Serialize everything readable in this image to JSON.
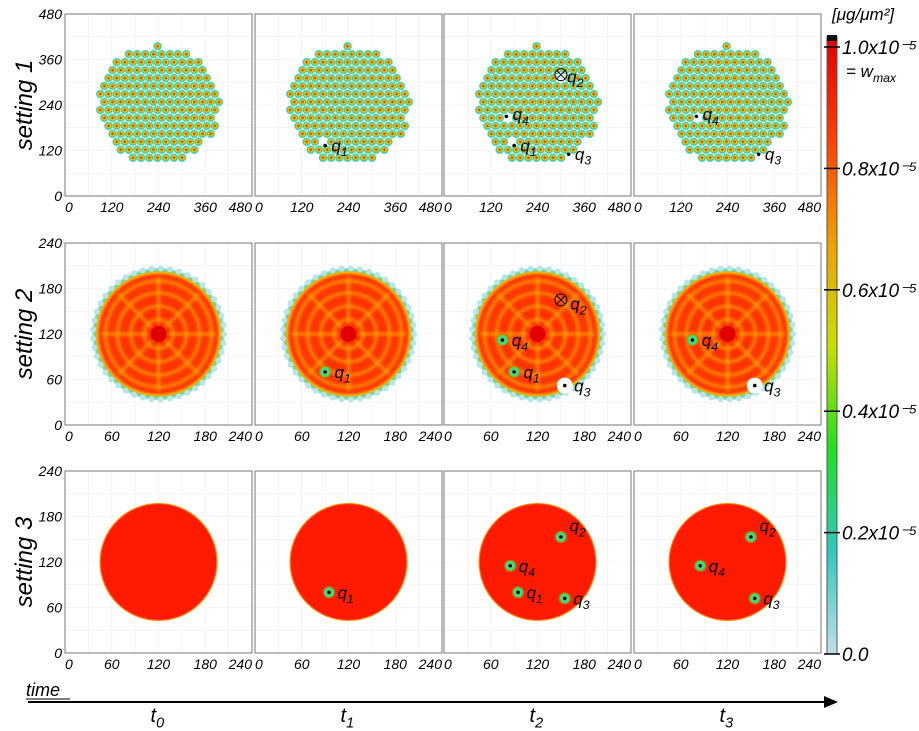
{
  "colorbar": {
    "unit": "[μg/μm²]",
    "max_label": "1.0x10⁻⁵",
    "wmax_label": "= w",
    "wmax_sub": "max",
    "ticks": [
      {
        "value": 1.0,
        "label": "1.0x10⁻⁵"
      },
      {
        "value": 0.8,
        "label": "0.8x10⁻⁵"
      },
      {
        "value": 0.6,
        "label": "0.6x10⁻⁵"
      },
      {
        "value": 0.4,
        "label": "0.4x10⁻⁵"
      },
      {
        "value": 0.2,
        "label": "0.2x10⁻⁵"
      },
      {
        "value": 0.0,
        "label": "0.0"
      }
    ],
    "colors": [
      "#c0e0e8",
      "#30c8c0",
      "#20e020",
      "#c8e000",
      "#f0a000",
      "#ff4000",
      "#e00000"
    ]
  },
  "time_axis": {
    "label": "time",
    "times": [
      {
        "base": "t",
        "sub": "0"
      },
      {
        "base": "t",
        "sub": "1"
      },
      {
        "base": "t",
        "sub": "2"
      },
      {
        "base": "t",
        "sub": "3"
      }
    ]
  },
  "settings": [
    {
      "label": "setting 1"
    },
    {
      "label": "setting 2"
    },
    {
      "label": "setting 3"
    }
  ],
  "chart_data": [
    {
      "type": "heatmap",
      "setting": "setting 1",
      "xlim": [
        0,
        480
      ],
      "ylim": [
        0,
        480
      ],
      "xticks": [
        "0",
        "120",
        "240",
        "360",
        "480"
      ],
      "yticks": [
        "0",
        "120",
        "240",
        "360",
        "480"
      ],
      "field": "pillars",
      "domain": {
        "cx": 240,
        "cy": 240,
        "r": 160
      },
      "points_by_time": [
        [],
        [
          {
            "name": "q",
            "sub": "1",
            "x": 180,
            "y": 133,
            "lx": 196,
            "ly": 118
          }
        ],
        [
          {
            "name": "q",
            "sub": "1",
            "x": 180,
            "y": 133,
            "lx": 196,
            "ly": 118
          },
          {
            "name": "q",
            "sub": "2",
            "x": 300,
            "y": 320,
            "lx": 316,
            "ly": 300,
            "marker": "otimes"
          },
          {
            "name": "q",
            "sub": "3",
            "x": 320,
            "y": 110,
            "lx": 336,
            "ly": 95
          },
          {
            "name": "q",
            "sub": "4",
            "x": 160,
            "y": 210,
            "lx": 176,
            "ly": 200
          }
        ],
        [
          {
            "name": "q",
            "sub": "3",
            "x": 320,
            "y": 110,
            "lx": 336,
            "ly": 95
          },
          {
            "name": "q",
            "sub": "4",
            "x": 160,
            "y": 210,
            "lx": 176,
            "ly": 200
          }
        ]
      ]
    },
    {
      "type": "heatmap",
      "setting": "setting 2",
      "xlim": [
        0,
        240
      ],
      "ylim": [
        0,
        240
      ],
      "xticks": [
        "0",
        "60",
        "120",
        "180",
        "240"
      ],
      "yticks": [
        "0",
        "60",
        "120",
        "180",
        "240"
      ],
      "field": "smooth-pattern",
      "domain": {
        "cx": 120,
        "cy": 120,
        "r": 85
      },
      "points_by_time": [
        [],
        [
          {
            "name": "q",
            "sub": "1",
            "x": 90,
            "y": 70,
            "lx": 102,
            "ly": 62
          }
        ],
        [
          {
            "name": "q",
            "sub": "1",
            "x": 90,
            "y": 70,
            "lx": 102,
            "ly": 62
          },
          {
            "name": "q",
            "sub": "2",
            "x": 150,
            "y": 165,
            "lx": 162,
            "ly": 152,
            "marker": "otimes"
          },
          {
            "name": "q",
            "sub": "3",
            "x": 155,
            "y": 52,
            "lx": 167,
            "ly": 44,
            "notch": true
          },
          {
            "name": "q",
            "sub": "4",
            "x": 75,
            "y": 112,
            "lx": 87,
            "ly": 104
          }
        ],
        [
          {
            "name": "q",
            "sub": "3",
            "x": 155,
            "y": 52,
            "lx": 167,
            "ly": 44,
            "notch": true
          },
          {
            "name": "q",
            "sub": "4",
            "x": 75,
            "y": 112,
            "lx": 87,
            "ly": 104
          }
        ]
      ]
    },
    {
      "type": "heatmap",
      "setting": "setting 3",
      "xlim": [
        0,
        240
      ],
      "ylim": [
        0,
        240
      ],
      "xticks": [
        "0",
        "60",
        "120",
        "180",
        "240"
      ],
      "yticks": [
        "0",
        "60",
        "120",
        "180",
        "240"
      ],
      "field": "uniform",
      "domain": {
        "cx": 120,
        "cy": 120,
        "r": 75
      },
      "points_by_time": [
        [],
        [
          {
            "name": "q",
            "sub": "1",
            "x": 95,
            "y": 80,
            "lx": 106,
            "ly": 72
          }
        ],
        [
          {
            "name": "q",
            "sub": "1",
            "x": 95,
            "y": 80,
            "lx": 106,
            "ly": 72
          },
          {
            "name": "q",
            "sub": "2",
            "x": 150,
            "y": 153,
            "lx": 161,
            "ly": 160
          },
          {
            "name": "q",
            "sub": "3",
            "x": 155,
            "y": 72,
            "lx": 166,
            "ly": 64
          },
          {
            "name": "q",
            "sub": "4",
            "x": 85,
            "y": 115,
            "lx": 96,
            "ly": 107
          }
        ],
        [
          {
            "name": "q",
            "sub": "2",
            "x": 150,
            "y": 153,
            "lx": 161,
            "ly": 160
          },
          {
            "name": "q",
            "sub": "3",
            "x": 155,
            "y": 72,
            "lx": 166,
            "ly": 64
          },
          {
            "name": "q",
            "sub": "4",
            "x": 85,
            "y": 115,
            "lx": 96,
            "ly": 107
          }
        ]
      ]
    }
  ]
}
